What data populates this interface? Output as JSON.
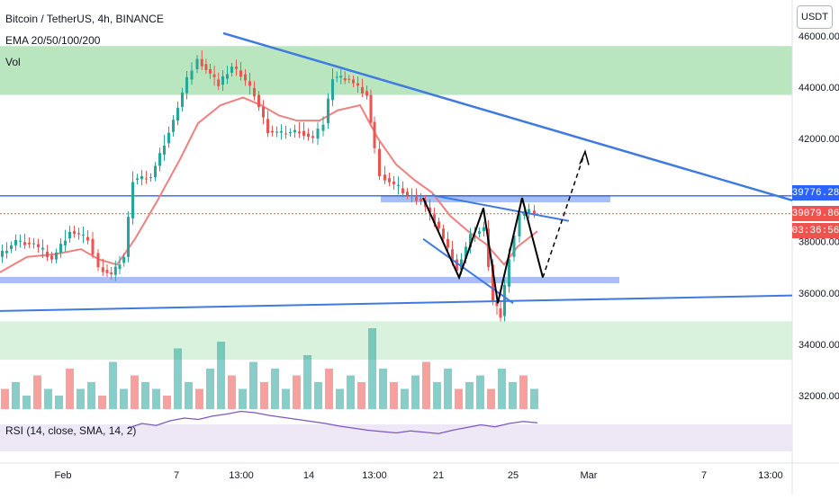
{
  "header": {
    "ticker": "Bitcoin / TetherUS, 4h, BINANCE",
    "indicator": "EMA 20/50/100/200",
    "volume": "Vol",
    "rsi": "RSI (14, close, SMA, 14, 2)",
    "unit": "USDT"
  },
  "price_tags": {
    "level": "39776.28",
    "last": "39079.86",
    "timer": "03:36:56"
  },
  "colors": {
    "up": "#26a69a",
    "down": "#ef5350",
    "ema": "#f08080",
    "trendline": "#3f7ae0",
    "zone": "#7fd18a",
    "blue_zone": "#a9bff3",
    "rsi_line": "#7e57c2",
    "rsi_band": "#ede7f6"
  },
  "chart_data": {
    "type": "candlestick",
    "y_axis_ticks": [
      32000,
      34000,
      36000,
      38000,
      40000,
      42000,
      44000,
      46000
    ],
    "y_tick_labels": [
      "32000.00",
      "34000.00",
      "36000.00",
      "38000.00",
      "40000.00",
      "42000.00",
      "44000.00",
      "46000.00"
    ],
    "x_tick_labels": [
      "Feb",
      "7",
      "13:00",
      "14",
      "13:00",
      "21",
      "25",
      "Mar",
      "7",
      "13:00"
    ],
    "last_price": 39079.86,
    "horizontal_level": 39776.28,
    "price_path": [
      [
        0,
        37400
      ],
      [
        20,
        38000
      ],
      [
        40,
        37900
      ],
      [
        60,
        37300
      ],
      [
        80,
        38400
      ],
      [
        100,
        38100
      ],
      [
        112,
        37000
      ],
      [
        126,
        36700
      ],
      [
        140,
        37400
      ],
      [
        150,
        40400
      ],
      [
        170,
        40500
      ],
      [
        195,
        42700
      ],
      [
        210,
        44300
      ],
      [
        222,
        45100
      ],
      [
        245,
        44100
      ],
      [
        260,
        44800
      ],
      [
        270,
        44500
      ],
      [
        285,
        43700
      ],
      [
        300,
        42300
      ],
      [
        315,
        42200
      ],
      [
        335,
        42300
      ],
      [
        350,
        42000
      ],
      [
        362,
        42600
      ],
      [
        372,
        44400
      ],
      [
        390,
        44300
      ],
      [
        410,
        43700
      ],
      [
        418,
        41600
      ],
      [
        425,
        40600
      ],
      [
        440,
        40200
      ],
      [
        455,
        39800
      ],
      [
        470,
        39600
      ],
      [
        490,
        38500
      ],
      [
        510,
        36900
      ],
      [
        525,
        38200
      ],
      [
        540,
        38500
      ],
      [
        550,
        35700
      ],
      [
        558,
        35100
      ],
      [
        568,
        37400
      ],
      [
        580,
        39000
      ],
      [
        590,
        39200
      ],
      [
        597,
        39100
      ]
    ],
    "ema_path": [
      [
        0,
        36800
      ],
      [
        30,
        37400
      ],
      [
        60,
        37500
      ],
      [
        90,
        37700
      ],
      [
        110,
        37300
      ],
      [
        130,
        37100
      ],
      [
        150,
        38100
      ],
      [
        175,
        39600
      ],
      [
        200,
        41200
      ],
      [
        220,
        42600
      ],
      [
        245,
        43300
      ],
      [
        270,
        43600
      ],
      [
        290,
        43300
      ],
      [
        310,
        42900
      ],
      [
        330,
        42700
      ],
      [
        355,
        42700
      ],
      [
        375,
        43100
      ],
      [
        400,
        43300
      ],
      [
        420,
        42000
      ],
      [
        440,
        41000
      ],
      [
        460,
        40400
      ],
      [
        480,
        39900
      ],
      [
        500,
        39000
      ],
      [
        520,
        38400
      ],
      [
        540,
        37900
      ],
      [
        560,
        37100
      ],
      [
        575,
        37800
      ],
      [
        597,
        38400
      ]
    ],
    "zones": [
      {
        "color": "green",
        "from": 43700,
        "to": 45600
      },
      {
        "color": "green-light",
        "from": 33400,
        "to": 34900
      }
    ],
    "trendlines": [
      {
        "from": [
          248,
          46100
        ],
        "to": [
          880,
          39600
        ]
      },
      {
        "from": [
          0,
          35300
        ],
        "to": [
          880,
          35900
        ]
      },
      {
        "from": [
          470,
          38100
        ],
        "to": [
          570,
          35600
        ]
      },
      {
        "from": [
          480,
          39800
        ],
        "to": [
          632,
          38800
        ]
      }
    ],
    "projection": [
      [
        470,
        39700
      ],
      [
        510,
        36600
      ],
      [
        537,
        39300
      ],
      [
        553,
        35600
      ],
      [
        580,
        39700
      ],
      [
        603,
        36600
      ],
      [
        650,
        41500
      ]
    ],
    "volume": [
      3,
      4,
      2,
      5,
      3,
      2,
      6,
      3,
      4,
      2,
      7,
      3,
      5,
      4,
      3,
      2,
      9,
      4,
      3,
      6,
      10,
      5,
      3,
      7,
      4,
      6,
      3,
      5,
      8,
      4,
      6,
      3,
      5,
      4,
      12,
      6,
      4,
      3,
      5,
      7,
      4,
      6,
      3,
      4,
      5,
      3,
      6,
      4,
      5,
      3
    ],
    "rsi": [
      45,
      52,
      49,
      56,
      60,
      58,
      63,
      66,
      70,
      68,
      64,
      61,
      58,
      55,
      52,
      48,
      45,
      42,
      40,
      38,
      41,
      39,
      37,
      42,
      46,
      50,
      47,
      52,
      55,
      53
    ]
  }
}
